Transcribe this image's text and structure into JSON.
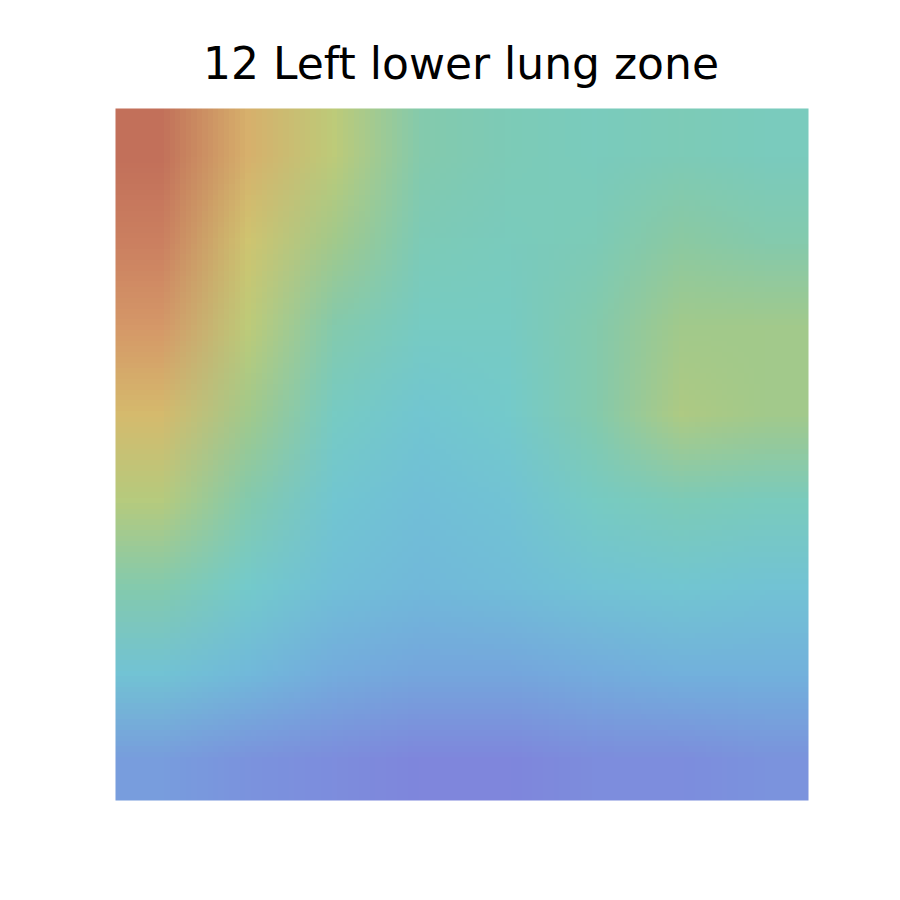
{
  "chart_data": {
    "type": "heatmap",
    "title": "12 Left lower lung zone",
    "cells": [
      [
        0.95,
        0.75,
        0.62,
        0.45,
        0.42,
        0.4,
        0.42,
        0.4
      ],
      [
        0.9,
        0.68,
        0.55,
        0.42,
        0.4,
        0.42,
        0.48,
        0.45
      ],
      [
        0.82,
        0.62,
        0.45,
        0.38,
        0.38,
        0.45,
        0.55,
        0.55
      ],
      [
        0.72,
        0.55,
        0.38,
        0.32,
        0.35,
        0.45,
        0.58,
        0.55
      ],
      [
        0.6,
        0.45,
        0.32,
        0.28,
        0.3,
        0.38,
        0.42,
        0.4
      ],
      [
        0.45,
        0.35,
        0.28,
        0.25,
        0.27,
        0.3,
        0.32,
        0.3
      ],
      [
        0.3,
        0.25,
        0.2,
        0.18,
        0.18,
        0.2,
        0.22,
        0.22
      ],
      [
        0.15,
        0.12,
        0.1,
        0.08,
        0.08,
        0.1,
        0.1,
        0.12
      ]
    ],
    "tick_labels": false
  }
}
